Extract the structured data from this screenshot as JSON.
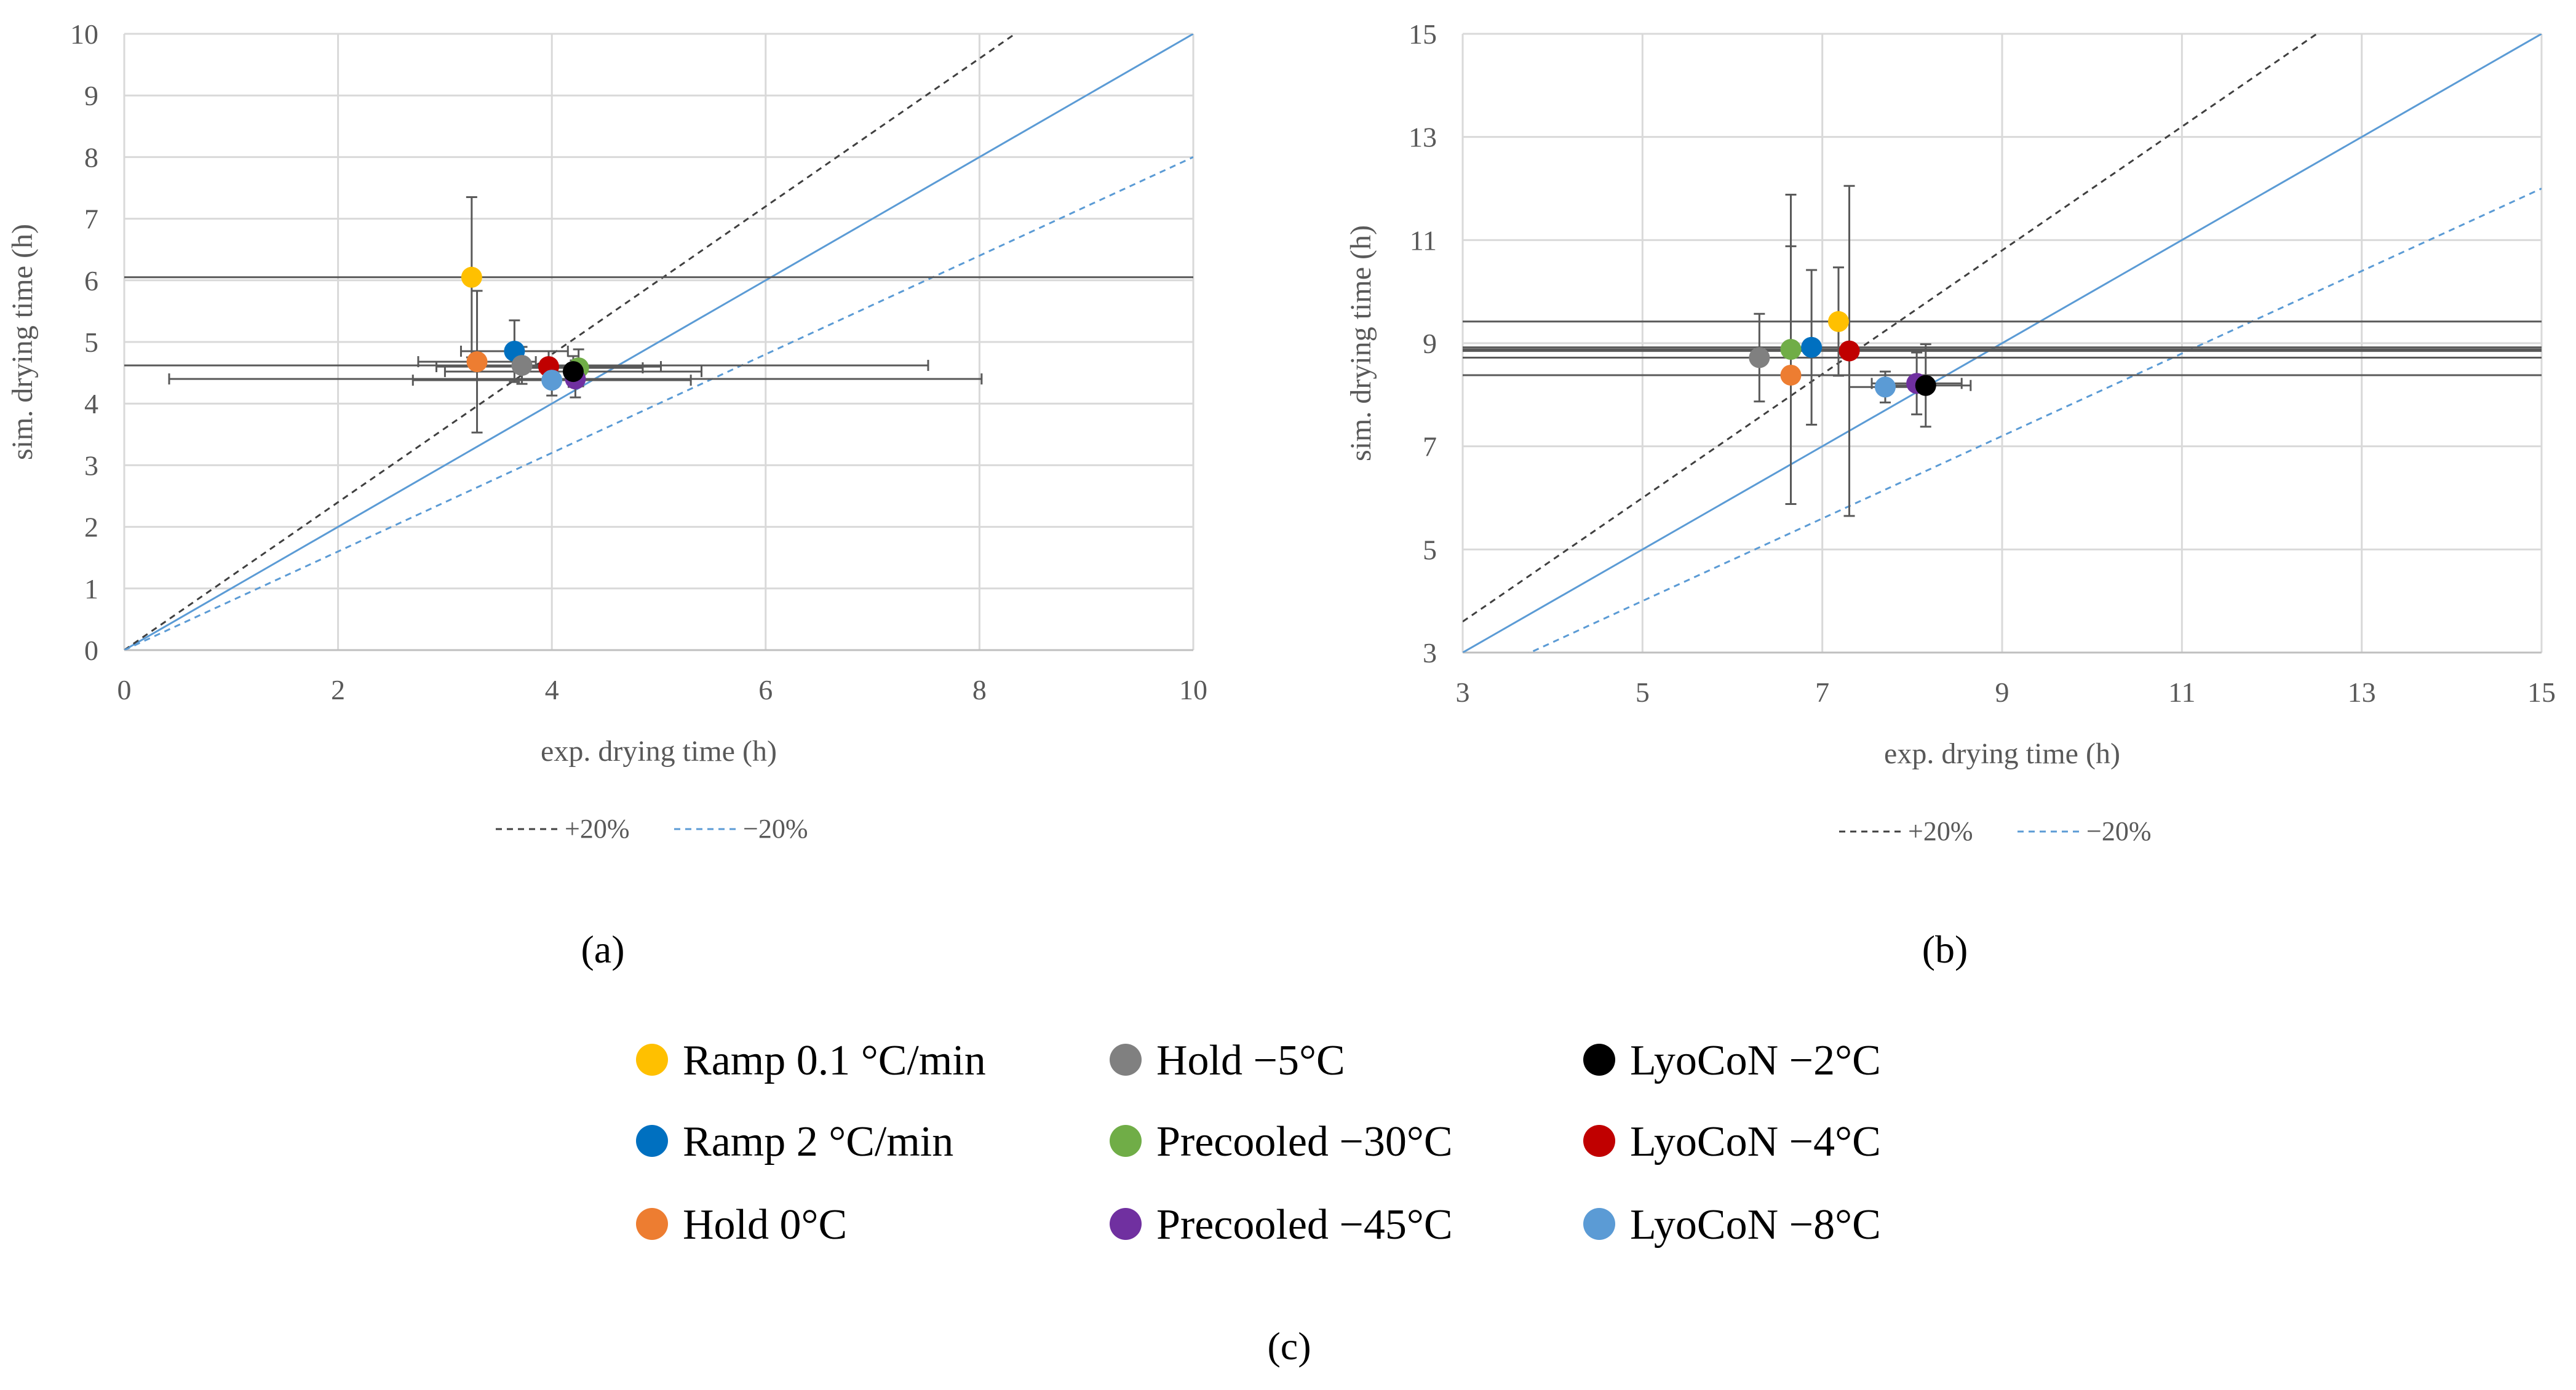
{
  "chart_data": [
    {
      "type": "scatter",
      "panel_label": "(a)",
      "xlabel": "exp. drying time (h)",
      "ylabel": "sim. drying time (h)",
      "xlim": [
        0,
        10
      ],
      "ylim": [
        0,
        10
      ],
      "x_ticks": [
        "0",
        "2",
        "4",
        "6",
        "8",
        "10"
      ],
      "y_ticks": [
        "0",
        "1",
        "2",
        "3",
        "4",
        "5",
        "6",
        "7",
        "8",
        "9",
        "10"
      ],
      "grid": true,
      "reference_lines": [
        {
          "name": "identity",
          "slope": 1.0,
          "style": "solid",
          "color": "#5B9BD5"
        },
        {
          "name": "+20%",
          "slope": 1.2,
          "style": "dashed",
          "color": "#404040"
        },
        {
          "name": "−20%",
          "slope": 0.8,
          "style": "dashed",
          "color": "#5B9BD5"
        }
      ],
      "line_legend": [
        "+20%",
        "−20%"
      ],
      "points": [
        {
          "series": 0,
          "x": 3.25,
          "y": 6.05,
          "xerr": 18.0,
          "yerr": 1.3
        },
        {
          "series": 1,
          "x": 3.65,
          "y": 4.85,
          "xerr": 0.5,
          "yerr": 0.5
        },
        {
          "series": 2,
          "x": 3.3,
          "y": 4.68,
          "xerr": 0.55,
          "yerr": 1.15
        },
        {
          "series": 3,
          "x": 3.72,
          "y": 4.62,
          "xerr": 3.8,
          "yerr": 0.3
        },
        {
          "series": 4,
          "x": 4.25,
          "y": 4.58,
          "xerr": 0.6,
          "yerr": 0.3
        },
        {
          "series": 5,
          "x": 4.22,
          "y": 4.4,
          "xerr": 3.8,
          "yerr": 0.3
        },
        {
          "series": 6,
          "x": 4.2,
          "y": 4.52,
          "xerr": 1.2,
          "yerr": 0.25
        },
        {
          "series": 7,
          "x": 3.97,
          "y": 4.6,
          "xerr": 1.05,
          "yerr": 0.25
        },
        {
          "series": 8,
          "x": 4.0,
          "y": 4.38,
          "xerr": 1.3,
          "yerr": 0.25
        }
      ]
    },
    {
      "type": "scatter",
      "panel_label": "(b)",
      "xlabel": "exp. drying time (h)",
      "ylabel": "sim. drying time (h)",
      "xlim": [
        3,
        15
      ],
      "ylim": [
        3,
        15
      ],
      "x_ticks": [
        "3",
        "5",
        "7",
        "9",
        "11",
        "13",
        "15"
      ],
      "y_ticks": [
        "3",
        "5",
        "7",
        "9",
        "11",
        "13",
        "15"
      ],
      "grid": true,
      "reference_lines": [
        {
          "name": "identity",
          "slope": 1.0,
          "style": "solid",
          "color": "#5B9BD5"
        },
        {
          "name": "+20%",
          "slope": 1.2,
          "style": "dashed",
          "color": "#404040"
        },
        {
          "name": "−20%",
          "slope": 0.8,
          "style": "dashed",
          "color": "#5B9BD5"
        }
      ],
      "line_legend": [
        "+20%",
        "−20%"
      ],
      "points": [
        {
          "series": 0,
          "x": 7.18,
          "y": 9.42,
          "xerr": 10.0,
          "yerr": 1.05
        },
        {
          "series": 1,
          "x": 6.88,
          "y": 8.92,
          "xerr": 10.0,
          "yerr": 1.5
        },
        {
          "series": 2,
          "x": 6.65,
          "y": 8.38,
          "xerr": 10.0,
          "yerr": 2.5
        },
        {
          "series": 3,
          "x": 6.3,
          "y": 8.72,
          "xerr": 10.0,
          "yerr": 0.85
        },
        {
          "series": 4,
          "x": 6.65,
          "y": 8.88,
          "xerr": 10.0,
          "yerr": 3.0
        },
        {
          "series": 5,
          "x": 8.05,
          "y": 8.22,
          "xerr": 0.5,
          "yerr": 0.6
        },
        {
          "series": 6,
          "x": 8.15,
          "y": 8.18,
          "xerr": 0.5,
          "yerr": 0.8
        },
        {
          "series": 7,
          "x": 7.3,
          "y": 8.85,
          "xerr": 10.0,
          "yerr": 3.2
        },
        {
          "series": 8,
          "x": 7.7,
          "y": 8.15,
          "xerr": 0.4,
          "yerr": 0.3
        }
      ]
    }
  ],
  "legend": {
    "caption": "(c)",
    "items": [
      {
        "name": "Ramp 0.1 °C/min",
        "color": "#FFC000"
      },
      {
        "name": "Ramp 2 °C/min",
        "color": "#0070C0"
      },
      {
        "name": "Hold 0°C",
        "color": "#ED7D31"
      },
      {
        "name": "Hold −5°C",
        "color": "#808080"
      },
      {
        "name": "Precooled −30°C",
        "color": "#70AD47"
      },
      {
        "name": "Precooled −45°C",
        "color": "#7030A0"
      },
      {
        "name": "LyoCoN −2°C",
        "color": "#000000"
      },
      {
        "name": "LyoCoN −4°C",
        "color": "#C00000"
      },
      {
        "name": "LyoCoN −8°C",
        "color": "#5B9BD5"
      }
    ]
  }
}
